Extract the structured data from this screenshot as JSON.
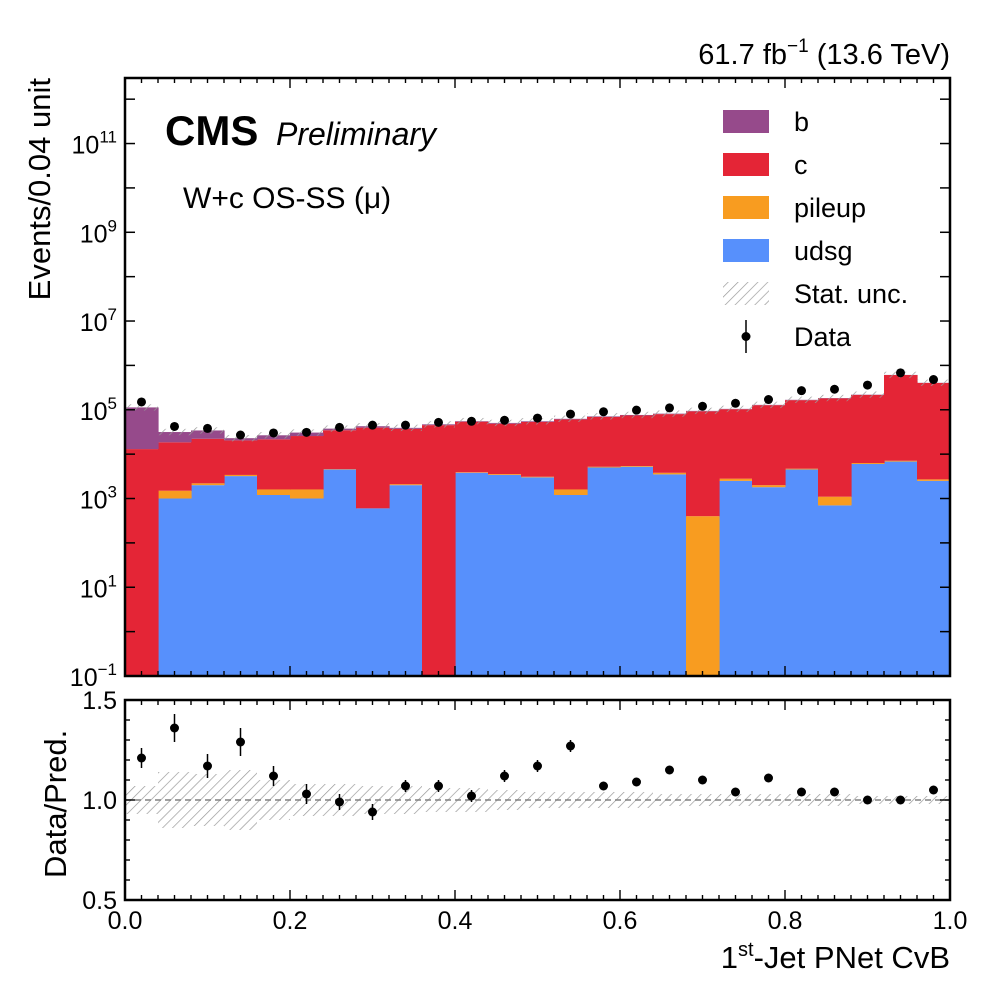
{
  "header": {
    "lumi_value": "61.7",
    "lumi_unit": "fb",
    "lumi_exp": "−1",
    "energy": "(13.6 TeV)"
  },
  "label": {
    "experiment": "CMS",
    "status": "Preliminary",
    "selection": "W+c OS-SS (μ)"
  },
  "colors": {
    "b": "#964a8b",
    "c": "#e42536",
    "pileup": "#f89c20",
    "udsg": "#5790fc",
    "hatch": "#9a9a9a",
    "data": "#000000"
  },
  "chart_data": [
    {
      "type": "bar",
      "stacked": true,
      "yscale": "log",
      "ylabel": "Events/0.04 unit",
      "xlim": [
        0.0,
        1.0
      ],
      "ylim": [
        0.1,
        3000000000000.0
      ],
      "yticks": [
        {
          "value": 0.1,
          "base": "10",
          "exp": "−1"
        },
        {
          "value": 10,
          "base": "10",
          "exp": "1"
        },
        {
          "value": 1000,
          "base": "10",
          "exp": "3"
        },
        {
          "value": 100000,
          "base": "10",
          "exp": "5"
        },
        {
          "value": 10000000,
          "base": "10",
          "exp": "7"
        },
        {
          "value": 1000000000,
          "base": "10",
          "exp": "9"
        },
        {
          "value": 100000000000,
          "base": "10",
          "exp": "11"
        }
      ],
      "bin_edges": [
        0.0,
        0.04,
        0.08,
        0.12,
        0.16,
        0.2,
        0.24,
        0.28,
        0.32,
        0.36,
        0.4,
        0.44,
        0.48,
        0.52,
        0.56,
        0.6,
        0.64,
        0.68,
        0.72,
        0.76,
        0.8,
        0.84,
        0.88,
        0.92,
        0.96,
        1.0
      ],
      "series": [
        {
          "name": "udsg",
          "key": "udsg",
          "values": [
            0,
            1000,
            2000,
            3200,
            1200,
            1000,
            4500,
            600,
            2000,
            0,
            3800,
            3400,
            3000,
            1200,
            5000,
            5200,
            3500,
            0,
            2500,
            1800,
            4500,
            700,
            6000,
            6800,
            2500
          ]
        },
        {
          "name": "pileup",
          "key": "pileup",
          "values": [
            0,
            500,
            200,
            200,
            400,
            600,
            100,
            0,
            100,
            0,
            100,
            150,
            100,
            400,
            200,
            200,
            300,
            400,
            300,
            200,
            200,
            400,
            300,
            300,
            200
          ]
        },
        {
          "name": "c",
          "key": "c",
          "values": [
            13000,
            17000,
            20000,
            17000,
            20000,
            24000,
            30000,
            39000,
            35000,
            45000,
            50000,
            45000,
            50000,
            59000,
            64000,
            69000,
            76000,
            92000,
            100000,
            125000,
            160000,
            180000,
            210000,
            600000,
            400000
          ]
        },
        {
          "name": "b",
          "key": "b",
          "values": [
            100000,
            13000,
            12000,
            2500,
            5000,
            5000,
            3000,
            3000,
            2000,
            2000,
            1500,
            2000,
            2000,
            2000,
            2000,
            2000,
            2000,
            2000,
            2000,
            2000,
            3000,
            3000,
            3000,
            3000,
            3000
          ]
        }
      ],
      "data_points": {
        "name": "Data",
        "x": [
          0.02,
          0.06,
          0.1,
          0.14,
          0.18,
          0.22,
          0.26,
          0.3,
          0.34,
          0.38,
          0.42,
          0.46,
          0.5,
          0.54,
          0.58,
          0.62,
          0.66,
          0.7,
          0.74,
          0.78,
          0.82,
          0.86,
          0.9,
          0.94,
          0.98
        ],
        "y": [
          150000,
          42000,
          38000,
          27000,
          30000,
          31000,
          40000,
          45000,
          45000,
          52000,
          55000,
          58000,
          65000,
          80000,
          90000,
          98000,
          110000,
          120000,
          140000,
          170000,
          270000,
          290000,
          360000,
          680000,
          480000
        ]
      },
      "legend": {
        "placement": "top-right",
        "entries": [
          {
            "label": "b",
            "kind": "fill",
            "key": "b"
          },
          {
            "label": "c",
            "kind": "fill",
            "key": "c"
          },
          {
            "label": "pileup",
            "kind": "fill",
            "key": "pileup"
          },
          {
            "label": "udsg",
            "kind": "fill",
            "key": "udsg"
          },
          {
            "label": "Stat. unc.",
            "kind": "hatch"
          },
          {
            "label": "Data",
            "kind": "marker"
          }
        ]
      }
    },
    {
      "type": "scatter",
      "ylabel": "Data/Pred.",
      "xlabel_pre": "1",
      "xlabel_sup": "st",
      "xlabel_post": "-Jet PNet CvB",
      "xlim": [
        0.0,
        1.0
      ],
      "ylim": [
        0.5,
        1.5
      ],
      "xticks": [
        "0.0",
        "0.2",
        "0.4",
        "0.6",
        "0.8",
        "1.0"
      ],
      "yticks": [
        "0.5",
        "1.0",
        "1.5"
      ],
      "reference_line": 1.0,
      "x": [
        0.02,
        0.06,
        0.1,
        0.14,
        0.18,
        0.22,
        0.26,
        0.3,
        0.34,
        0.38,
        0.42,
        0.46,
        0.5,
        0.54,
        0.58,
        0.62,
        0.66,
        0.7,
        0.74,
        0.78,
        0.82,
        0.86,
        0.9,
        0.94,
        0.98
      ],
      "y": [
        1.21,
        1.36,
        1.17,
        1.29,
        1.12,
        1.03,
        0.99,
        0.94,
        1.07,
        1.07,
        1.02,
        1.12,
        1.17,
        1.27,
        1.07,
        1.09,
        1.15,
        1.1,
        1.04,
        1.11,
        1.04,
        1.04,
        1.0,
        1.0,
        1.05
      ],
      "yerr": [
        0.05,
        0.07,
        0.06,
        0.07,
        0.05,
        0.05,
        0.04,
        0.04,
        0.03,
        0.03,
        0.03,
        0.03,
        0.03,
        0.03,
        0.02,
        0.02,
        0.02,
        0.02,
        0.015,
        0.015,
        0.015,
        0.015,
        0.012,
        0.012,
        0.012
      ],
      "stat_band": [
        0.07,
        0.14,
        0.13,
        0.15,
        0.1,
        0.08,
        0.08,
        0.07,
        0.07,
        0.06,
        0.06,
        0.05,
        0.04,
        0.04,
        0.04,
        0.04,
        0.03,
        0.03,
        0.03,
        0.03,
        0.03,
        0.03,
        0.02,
        0.02,
        0.02
      ]
    }
  ]
}
